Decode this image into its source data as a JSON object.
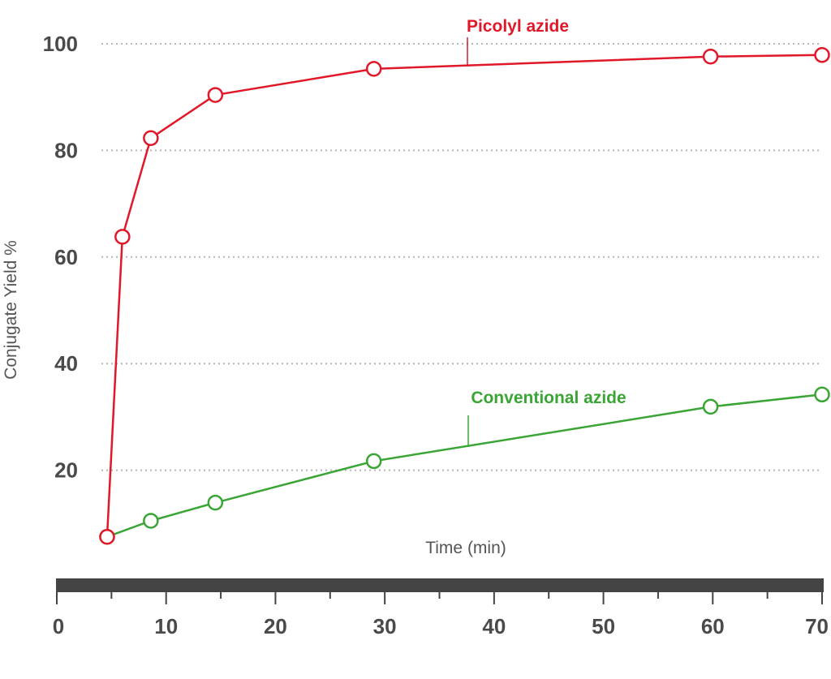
{
  "chart_data": {
    "type": "line",
    "xlabel": "Time (min)",
    "ylabel": "Conjugate Yield %",
    "xlim": [
      0,
      70
    ],
    "ylim": [
      7,
      100
    ],
    "xticks": [
      "0",
      "10",
      "20",
      "30",
      "40",
      "50",
      "60",
      "70"
    ],
    "yticks": [
      "20",
      "40",
      "60",
      "80",
      "100"
    ],
    "grid": true,
    "series": [
      {
        "name": "Picolyl azide",
        "color": "#e0182a",
        "x": [
          4.6,
          6,
          8.6,
          14.5,
          29,
          59.8,
          70
        ],
        "y": [
          7.5,
          63.8,
          82.3,
          90.4,
          95.3,
          97.6,
          97.9
        ]
      },
      {
        "name": "Conventional azide",
        "color": "#3aa535",
        "x": [
          4.6,
          8.6,
          14.5,
          29,
          59.8,
          70
        ],
        "y": [
          7.5,
          10.5,
          13.9,
          21.7,
          31.9,
          34.2
        ]
      }
    ]
  }
}
